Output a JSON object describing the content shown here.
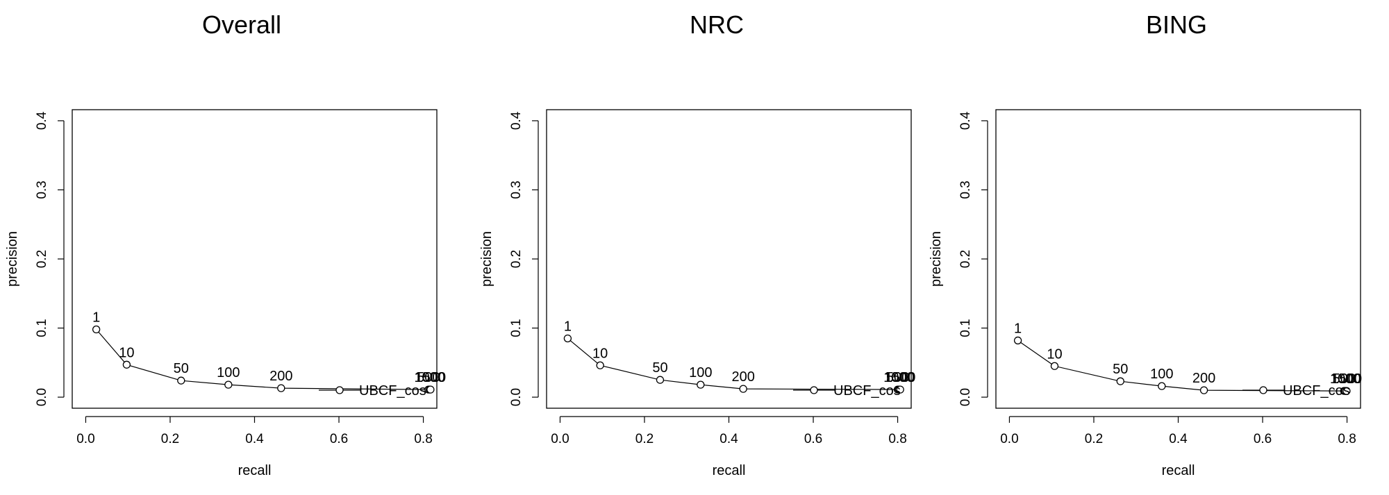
{
  "chart_data": [
    {
      "type": "line",
      "title": "Overall",
      "xlabel": "recall",
      "ylabel": "precision",
      "xlim": [
        0,
        0.8
      ],
      "ylim": [
        0,
        0.4
      ],
      "xticks": [
        "0.0",
        "0.2",
        "0.4",
        "0.6",
        "0.8"
      ],
      "yticks": [
        "0.0",
        "0.1",
        "0.2",
        "0.3",
        "0.4"
      ],
      "legend": {
        "label": "UBCF_cos",
        "position": "bottom-right"
      },
      "series": [
        {
          "name": "UBCF_cos",
          "points": [
            {
              "label": "1",
              "x": 0.025,
              "y": 0.098
            },
            {
              "label": "10",
              "x": 0.097,
              "y": 0.047
            },
            {
              "label": "50",
              "x": 0.226,
              "y": 0.024
            },
            {
              "label": "100",
              "x": 0.338,
              "y": 0.018
            },
            {
              "label": "200",
              "x": 0.463,
              "y": 0.013
            },
            {
              "label": "500",
              "x": 0.812,
              "y": 0.011
            },
            {
              "label": "1000",
              "x": 0.815,
              "y": 0.011
            },
            {
              "label": "1500",
              "x": 0.817,
              "y": 0.011
            }
          ]
        }
      ]
    },
    {
      "type": "line",
      "title": "NRC",
      "xlabel": "recall",
      "ylabel": "precision",
      "xlim": [
        0,
        0.8
      ],
      "ylim": [
        0,
        0.4
      ],
      "xticks": [
        "0.0",
        "0.2",
        "0.4",
        "0.6",
        "0.8"
      ],
      "yticks": [
        "0.0",
        "0.1",
        "0.2",
        "0.3",
        "0.4"
      ],
      "legend": {
        "label": "UBCF_cos",
        "position": "bottom-right"
      },
      "series": [
        {
          "name": "UBCF_cos",
          "points": [
            {
              "label": "1",
              "x": 0.018,
              "y": 0.085
            },
            {
              "label": "10",
              "x": 0.095,
              "y": 0.046
            },
            {
              "label": "50",
              "x": 0.237,
              "y": 0.025
            },
            {
              "label": "100",
              "x": 0.333,
              "y": 0.018
            },
            {
              "label": "200",
              "x": 0.434,
              "y": 0.012
            },
            {
              "label": "500",
              "x": 0.8,
              "y": 0.011
            },
            {
              "label": "1000",
              "x": 0.803,
              "y": 0.011
            },
            {
              "label": "1500",
              "x": 0.806,
              "y": 0.011
            }
          ]
        }
      ]
    },
    {
      "type": "line",
      "title": "BING",
      "xlabel": "recall",
      "ylabel": "precision",
      "xlim": [
        0,
        0.8
      ],
      "ylim": [
        0,
        0.4
      ],
      "xticks": [
        "0.0",
        "0.2",
        "0.4",
        "0.6",
        "0.8"
      ],
      "yticks": [
        "0.0",
        "0.1",
        "0.2",
        "0.3",
        "0.4"
      ],
      "legend": {
        "label": "UBCF_cos",
        "position": "bottom-right"
      },
      "series": [
        {
          "name": "UBCF_cos",
          "points": [
            {
              "label": "1",
              "x": 0.02,
              "y": 0.082
            },
            {
              "label": "10",
              "x": 0.107,
              "y": 0.045
            },
            {
              "label": "50",
              "x": 0.263,
              "y": 0.023
            },
            {
              "label": "100",
              "x": 0.361,
              "y": 0.016
            },
            {
              "label": "200",
              "x": 0.461,
              "y": 0.01
            },
            {
              "label": "500",
              "x": 0.793,
              "y": 0.009
            },
            {
              "label": "1000",
              "x": 0.796,
              "y": 0.009
            },
            {
              "label": "1500",
              "x": 0.799,
              "y": 0.009
            }
          ]
        }
      ]
    }
  ]
}
